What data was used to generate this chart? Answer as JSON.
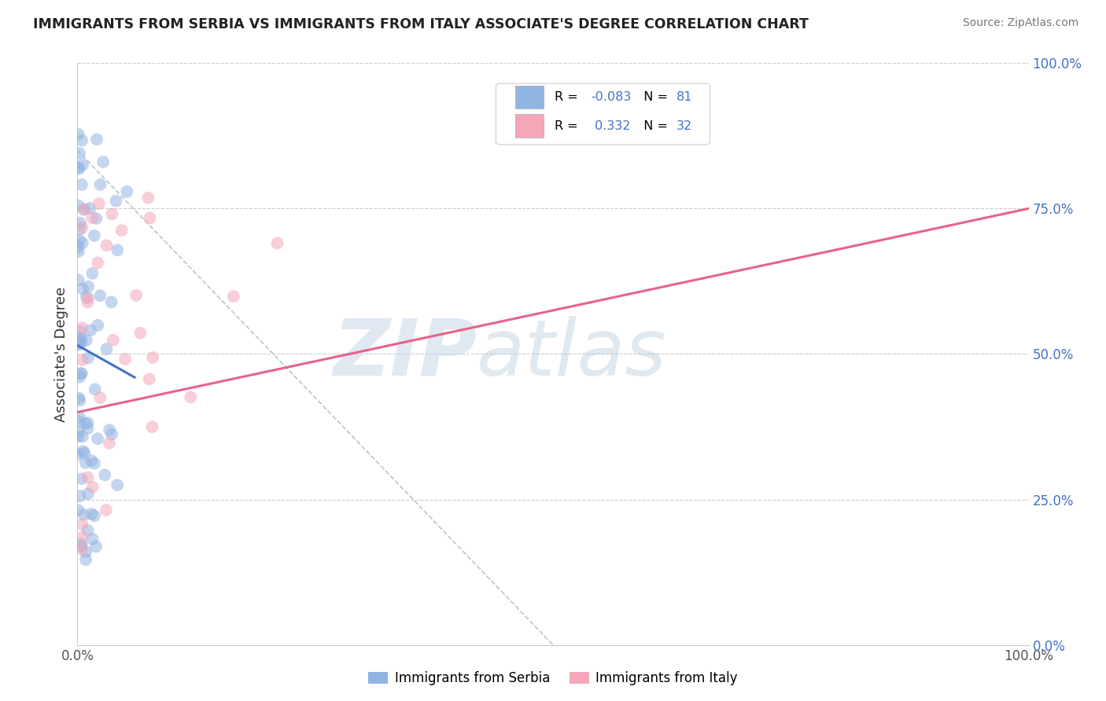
{
  "title": "IMMIGRANTS FROM SERBIA VS IMMIGRANTS FROM ITALY ASSOCIATE'S DEGREE CORRELATION CHART",
  "source_text": "Source: ZipAtlas.com",
  "ylabel": "Associate's Degree",
  "right_yticklabels": [
    "0.0%",
    "25.0%",
    "50.0%",
    "75.0%",
    "100.0%"
  ],
  "right_ytick_vals": [
    0.0,
    0.25,
    0.5,
    0.75,
    1.0
  ],
  "xlim": [
    0.0,
    1.0
  ],
  "ylim": [
    0.0,
    1.0
  ],
  "x_left_label": "0.0%",
  "x_right_label": "100.0%",
  "serbia_R": -0.083,
  "serbia_N": 81,
  "italy_R": 0.332,
  "italy_N": 32,
  "serbia_color": "#92b4e3",
  "italy_color": "#f4a7b9",
  "serbia_line_color": "#4472c4",
  "italy_line_color": "#e8638a",
  "ref_line_color": "#a0b8c8",
  "legend_label_serbia": "Immigrants from Serbia",
  "legend_label_italy": "Immigrants from Italy",
  "watermark_zip": "ZIP",
  "watermark_atlas": "atlas",
  "serbia_seed": 42,
  "italy_seed": 99,
  "grid_color": "#cccccc",
  "axis_color": "#cccccc",
  "tick_label_color": "#4472c4",
  "title_color": "#222222",
  "source_color": "#777777"
}
